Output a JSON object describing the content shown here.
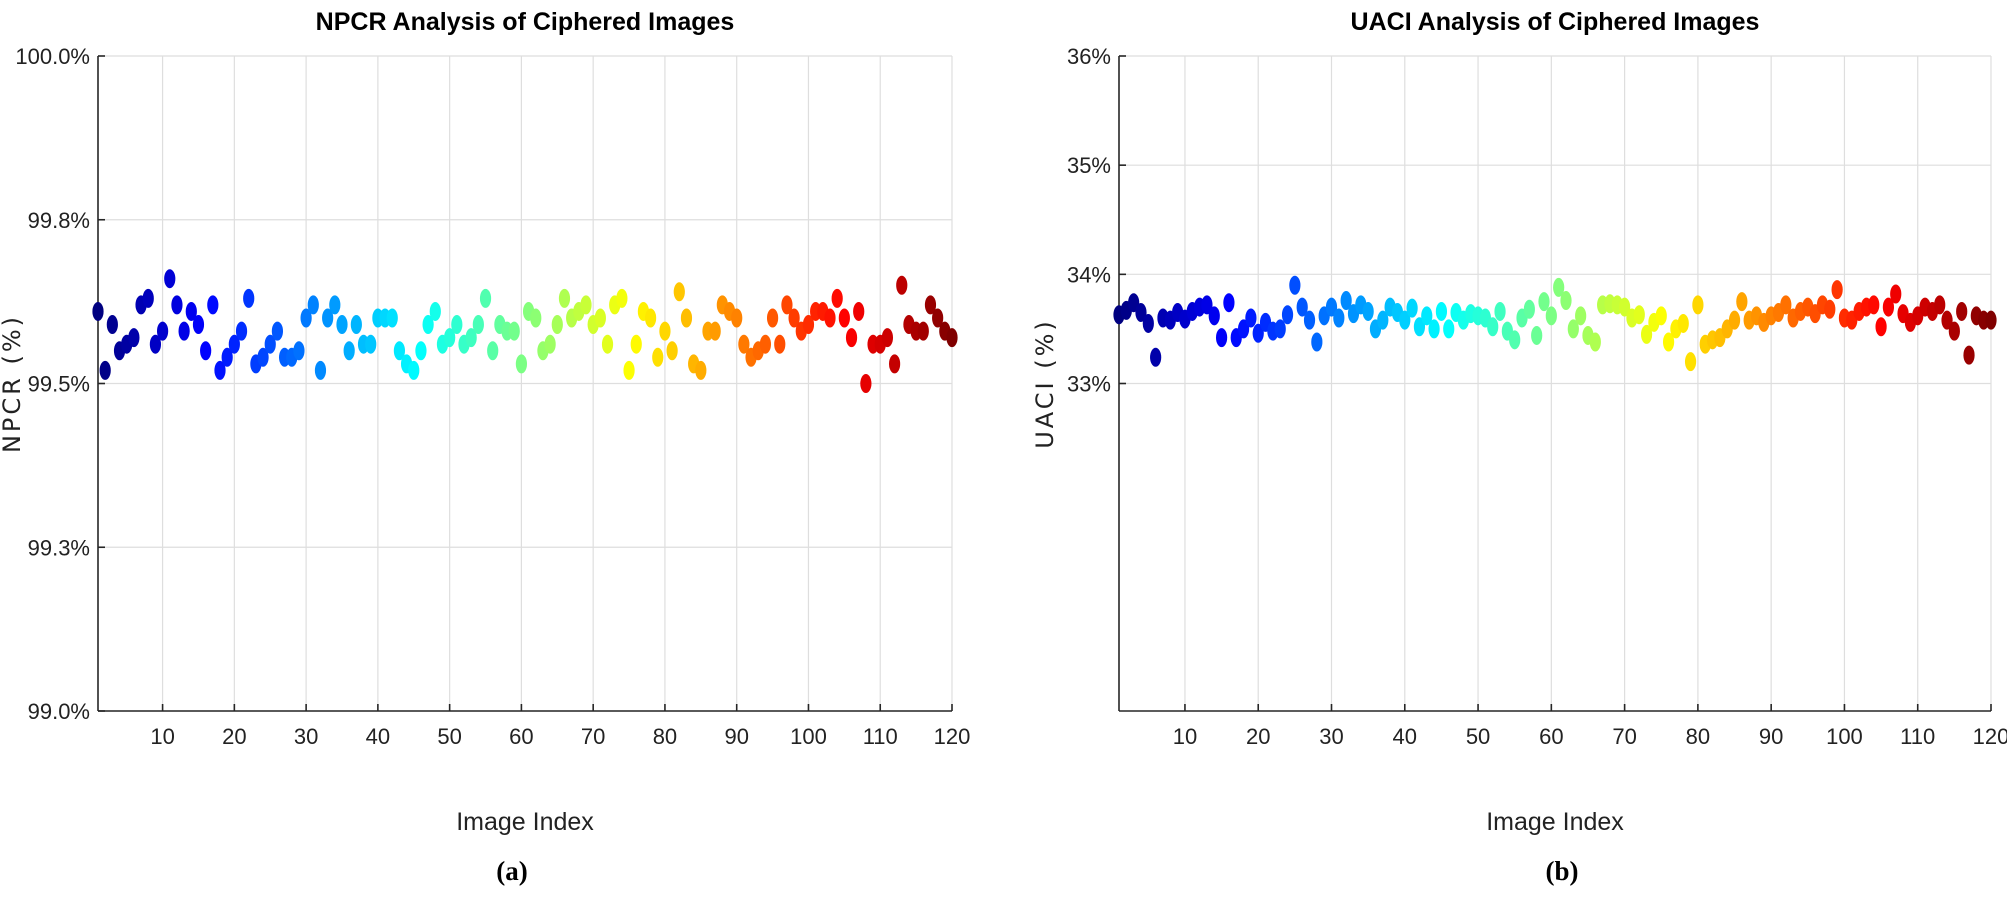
{
  "charts": [
    {
      "caption": "(a)",
      "chart_data": {
        "type": "scatter",
        "title": "NPCR Analysis of Ciphered Images",
        "xlabel": "Image Index",
        "ylabel": "NPCR (%)",
        "xlim": [
          1,
          120
        ],
        "ylim": [
          99.0,
          100.0
        ],
        "x_ticks": [
          10,
          20,
          30,
          40,
          50,
          60,
          70,
          80,
          90,
          100,
          110,
          120
        ],
        "y_ticks": [
          99.0,
          99.25,
          99.5,
          99.75,
          100.0
        ],
        "y_tick_labels": [
          "99.0%",
          "99.3%",
          "99.5%",
          "99.8%",
          "100.0%"
        ],
        "grid": true,
        "colormap": "jet",
        "x": [
          1,
          2,
          3,
          4,
          5,
          6,
          7,
          8,
          9,
          10,
          11,
          12,
          13,
          14,
          15,
          16,
          17,
          18,
          19,
          20,
          21,
          22,
          23,
          24,
          25,
          26,
          27,
          28,
          29,
          30,
          31,
          32,
          33,
          34,
          35,
          36,
          37,
          38,
          39,
          40,
          41,
          42,
          43,
          44,
          45,
          46,
          47,
          48,
          49,
          50,
          51,
          52,
          53,
          54,
          55,
          56,
          57,
          58,
          59,
          60,
          61,
          62,
          63,
          64,
          65,
          66,
          67,
          68,
          69,
          70,
          71,
          72,
          73,
          74,
          75,
          76,
          77,
          78,
          79,
          80,
          81,
          82,
          83,
          84,
          85,
          86,
          87,
          88,
          89,
          90,
          91,
          92,
          93,
          94,
          95,
          96,
          97,
          98,
          99,
          100,
          101,
          102,
          103,
          104,
          105,
          106,
          107,
          108,
          109,
          110,
          111,
          112,
          113,
          114,
          115,
          116,
          117,
          118,
          119,
          120
        ],
        "y": [
          99.61,
          99.52,
          99.59,
          99.55,
          99.56,
          99.57,
          99.62,
          99.63,
          99.56,
          99.58,
          99.66,
          99.62,
          99.58,
          99.61,
          99.59,
          99.55,
          99.62,
          99.52,
          99.54,
          99.56,
          99.58,
          99.63,
          99.53,
          99.54,
          99.56,
          99.58,
          99.54,
          99.54,
          99.55,
          99.6,
          99.62,
          99.52,
          99.6,
          99.62,
          99.59,
          99.55,
          99.59,
          99.56,
          99.56,
          99.6,
          99.6,
          99.6,
          99.55,
          99.53,
          99.52,
          99.55,
          99.59,
          99.61,
          99.56,
          99.57,
          99.59,
          99.56,
          99.57,
          99.59,
          99.63,
          99.55,
          99.59,
          99.58,
          99.58,
          99.53,
          99.61,
          99.6,
          99.55,
          99.56,
          99.59,
          99.63,
          99.6,
          99.61,
          99.62,
          99.59,
          99.6,
          99.56,
          99.62,
          99.63,
          99.52,
          99.56,
          99.61,
          99.6,
          99.54,
          99.58,
          99.55,
          99.64,
          99.6,
          99.53,
          99.52,
          99.58,
          99.58,
          99.62,
          99.61,
          99.6,
          99.56,
          99.54,
          99.55,
          99.56,
          99.6,
          99.56,
          99.62,
          99.6,
          99.58,
          99.59,
          99.61,
          99.61,
          99.6,
          99.63,
          99.6,
          99.57,
          99.61,
          99.5,
          99.56,
          99.56,
          99.57,
          99.53,
          99.65,
          99.59,
          99.58,
          99.58,
          99.62,
          99.6,
          99.58,
          99.57
        ]
      }
    },
    {
      "caption": "(b)",
      "chart_data": {
        "type": "scatter",
        "title": "UACI Analysis of  Ciphered Images",
        "xlabel": "Image Index",
        "ylabel": "UACI (%)",
        "xlim": [
          1,
          120
        ],
        "ylim": [
          30.0,
          36.0
        ],
        "x_ticks": [
          10,
          20,
          30,
          40,
          50,
          60,
          70,
          80,
          90,
          100,
          110,
          120
        ],
        "y_ticks": [
          33,
          34,
          35,
          36
        ],
        "y_tick_labels": [
          "33%",
          "34%",
          "35%",
          "36%"
        ],
        "grid": true,
        "colormap": "jet",
        "x": [
          1,
          2,
          3,
          4,
          5,
          6,
          7,
          8,
          9,
          10,
          11,
          12,
          13,
          14,
          15,
          16,
          17,
          18,
          19,
          20,
          21,
          22,
          23,
          24,
          25,
          26,
          27,
          28,
          29,
          30,
          31,
          32,
          33,
          34,
          35,
          36,
          37,
          38,
          39,
          40,
          41,
          42,
          43,
          44,
          45,
          46,
          47,
          48,
          49,
          50,
          51,
          52,
          53,
          54,
          55,
          56,
          57,
          58,
          59,
          60,
          61,
          62,
          63,
          64,
          65,
          66,
          67,
          68,
          69,
          70,
          71,
          72,
          73,
          74,
          75,
          76,
          77,
          78,
          79,
          80,
          81,
          82,
          83,
          84,
          85,
          86,
          87,
          88,
          89,
          90,
          91,
          92,
          93,
          94,
          95,
          96,
          97,
          98,
          99,
          100,
          101,
          102,
          103,
          104,
          105,
          106,
          107,
          108,
          109,
          110,
          111,
          112,
          113,
          114,
          115,
          116,
          117,
          118,
          119,
          120
        ],
        "y": [
          33.63,
          33.67,
          33.74,
          33.65,
          33.55,
          33.24,
          33.6,
          33.58,
          33.65,
          33.59,
          33.66,
          33.7,
          33.72,
          33.62,
          33.42,
          33.74,
          33.42,
          33.5,
          33.6,
          33.46,
          33.56,
          33.48,
          33.5,
          33.63,
          33.9,
          33.7,
          33.58,
          33.38,
          33.62,
          33.7,
          33.6,
          33.76,
          33.64,
          33.72,
          33.66,
          33.5,
          33.58,
          33.7,
          33.65,
          33.58,
          33.69,
          33.52,
          33.62,
          33.5,
          33.66,
          33.5,
          33.65,
          33.58,
          33.64,
          33.62,
          33.6,
          33.52,
          33.66,
          33.48,
          33.4,
          33.6,
          33.68,
          33.44,
          33.75,
          33.62,
          33.88,
          33.76,
          33.5,
          33.62,
          33.44,
          33.38,
          33.72,
          33.73,
          33.72,
          33.7,
          33.6,
          33.63,
          33.45,
          33.56,
          33.62,
          33.38,
          33.5,
          33.55,
          33.2,
          33.72,
          33.36,
          33.4,
          33.42,
          33.5,
          33.58,
          33.75,
          33.58,
          33.62,
          33.56,
          33.62,
          33.65,
          33.72,
          33.6,
          33.66,
          33.7,
          33.64,
          33.72,
          33.68,
          33.86,
          33.6,
          33.58,
          33.66,
          33.7,
          33.72,
          33.52,
          33.7,
          33.82,
          33.64,
          33.56,
          33.62,
          33.7,
          33.66,
          33.72,
          33.58,
          33.48,
          33.66,
          33.26,
          33.62,
          33.58,
          33.58
        ]
      }
    }
  ]
}
